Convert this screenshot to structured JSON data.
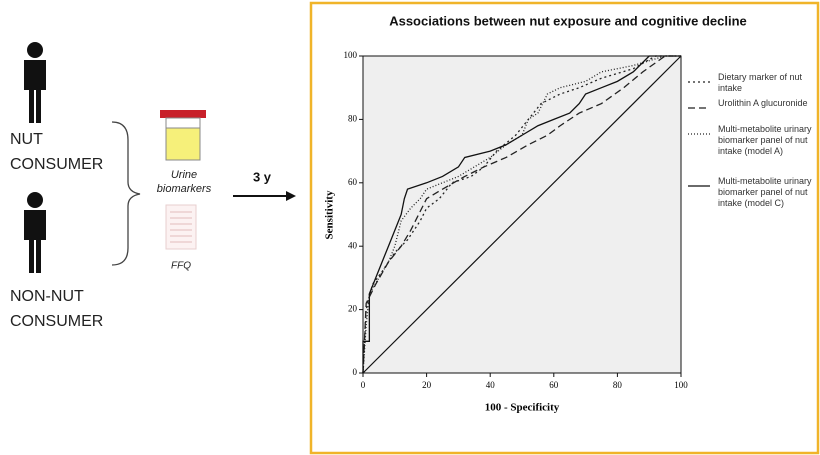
{
  "left_panel": {
    "group_top": [
      "NUT",
      "CONSUMER"
    ],
    "group_bottom": [
      "NON-NUT",
      "CONSUMER"
    ],
    "sample": [
      "Urine",
      "biomarkers"
    ],
    "questionnaire": "FFQ",
    "follow_up": "3 y"
  },
  "chart_data": {
    "type": "line",
    "title": "Associations between nut exposure and cognitive decline",
    "x_label": "100 - Specificity",
    "y_label": "Sensitivity",
    "xlim": [
      0,
      100
    ],
    "ylim": [
      0,
      100
    ],
    "xticks": [
      0,
      20,
      40,
      60,
      80,
      100
    ],
    "yticks": [
      0,
      20,
      40,
      60,
      80,
      100
    ],
    "series": [
      {
        "name": "Dietary marker of nut intake",
        "color": "#222222",
        "dash": "2,3",
        "x": [
          0,
          1,
          3,
          6,
          10,
          14,
          18,
          20,
          24,
          28,
          34,
          38,
          42,
          48,
          52,
          56,
          62,
          68,
          75,
          85,
          92,
          100
        ],
        "values": [
          0,
          20,
          28,
          32,
          38,
          42,
          48,
          52,
          55,
          60,
          62,
          65,
          70,
          75,
          80,
          85,
          88,
          90,
          93,
          96,
          100,
          100
        ]
      },
      {
        "name": "Urolithin A glucuronide",
        "color": "#222222",
        "dash": "7,4",
        "x": [
          0,
          1,
          4,
          8,
          12,
          15,
          20,
          25,
          32,
          38,
          45,
          52,
          58,
          62,
          68,
          75,
          82,
          88,
          95,
          100
        ],
        "values": [
          0,
          22,
          28,
          35,
          40,
          45,
          55,
          58,
          62,
          65,
          68,
          72,
          75,
          78,
          82,
          85,
          90,
          95,
          100,
          100
        ]
      },
      {
        "name": "Multi-metabolite urinary biomarker panel of nut intake (model A)",
        "color": "#222222",
        "dash": "1,2",
        "x": [
          0,
          1,
          2,
          5,
          8,
          10,
          12,
          15,
          18,
          20,
          25,
          30,
          35,
          40,
          45,
          50,
          52,
          55,
          58,
          62,
          70,
          75,
          85,
          95,
          100
        ],
        "values": [
          0,
          15,
          25,
          30,
          35,
          40,
          48,
          52,
          55,
          58,
          60,
          62,
          65,
          68,
          72,
          75,
          80,
          82,
          88,
          90,
          92,
          95,
          97,
          100,
          100
        ]
      },
      {
        "name": "Multi-metabolite urinary biomarker panel of nut intake (model C)",
        "color": "#111111",
        "dash": "none",
        "x": [
          0,
          0,
          2,
          2,
          4,
          6,
          8,
          10,
          12,
          13,
          14,
          20,
          25,
          30,
          32,
          40,
          45,
          50,
          55,
          60,
          65,
          68,
          70,
          75,
          80,
          85,
          90,
          100
        ],
        "values": [
          0,
          10,
          10,
          25,
          30,
          35,
          40,
          45,
          50,
          55,
          58,
          60,
          62,
          65,
          68,
          70,
          72,
          75,
          78,
          80,
          82,
          85,
          88,
          90,
          92,
          95,
          100,
          100
        ]
      }
    ]
  }
}
